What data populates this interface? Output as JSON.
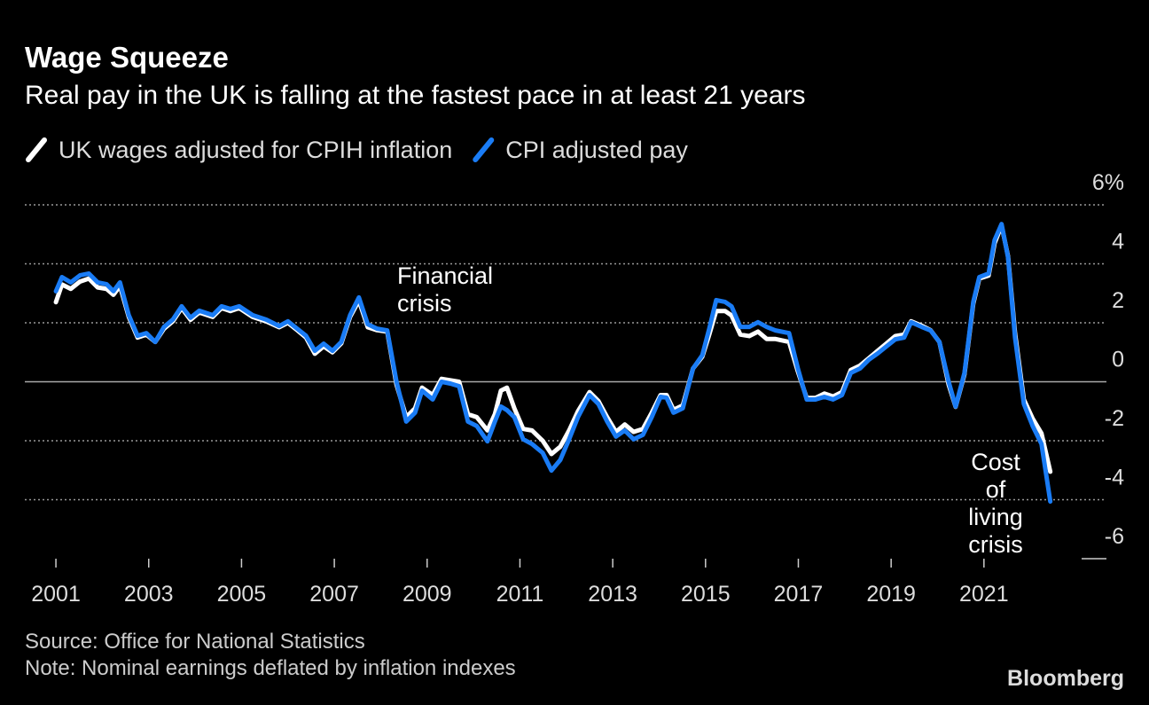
{
  "chart_data": {
    "type": "line",
    "title": "Wage Squeeze",
    "subtitle": "Real pay in the UK is falling at the fastest pace in at least 21 years",
    "source": "Source: Office for National Statistics",
    "note": "Note: Nominal earnings deflated by inflation indexes",
    "brand": "Bloomberg",
    "annotations": [
      {
        "lines": [
          "Financial",
          "crisis"
        ]
      },
      {
        "lines": [
          "Cost",
          "of",
          "living",
          "crisis"
        ]
      }
    ],
    "x": [
      2001.0,
      2001.13,
      2001.32,
      2001.52,
      2001.71,
      2001.9,
      2002.09,
      2002.24,
      2002.38,
      2002.57,
      2002.76,
      2002.95,
      2003.14,
      2003.33,
      2003.52,
      2003.71,
      2003.9,
      2004.09,
      2004.38,
      2004.57,
      2004.76,
      2004.95,
      2005.24,
      2005.53,
      2005.81,
      2006.0,
      2006.2,
      2006.39,
      2006.58,
      2006.77,
      2006.96,
      2007.15,
      2007.34,
      2007.53,
      2007.72,
      2007.92,
      2008.14,
      2008.34,
      2008.55,
      2008.74,
      2008.89,
      2009.12,
      2009.31,
      2009.5,
      2009.69,
      2009.88,
      2010.07,
      2010.3,
      2010.46,
      2010.59,
      2010.72,
      2010.88,
      2011.07,
      2011.26,
      2011.49,
      2011.68,
      2011.87,
      2012.06,
      2012.25,
      2012.5,
      2012.69,
      2012.88,
      2013.07,
      2013.26,
      2013.45,
      2013.65,
      2013.84,
      2014.03,
      2014.16,
      2014.31,
      2014.51,
      2014.73,
      2014.93,
      2015.08,
      2015.23,
      2015.42,
      2015.56,
      2015.75,
      2015.94,
      2016.13,
      2016.32,
      2016.51,
      2016.8,
      2016.99,
      2017.18,
      2017.37,
      2017.56,
      2017.75,
      2017.94,
      2018.13,
      2018.33,
      2018.52,
      2018.71,
      2018.9,
      2019.09,
      2019.28,
      2019.43,
      2019.66,
      2019.85,
      2020.04,
      2020.24,
      2020.39,
      2020.58,
      2020.77,
      2020.9,
      2021.1,
      2021.23,
      2021.38,
      2021.52,
      2021.67,
      2021.86,
      2022.05,
      2022.24,
      2022.43
    ],
    "series": [
      {
        "name": "UK wages adjusted for CPIH inflation",
        "color": "#ffffff",
        "values": [
          2.7,
          3.3,
          3.15,
          3.4,
          3.5,
          3.2,
          3.15,
          2.95,
          3.25,
          2.2,
          1.5,
          1.6,
          1.35,
          1.8,
          2.05,
          2.5,
          2.1,
          2.35,
          2.2,
          2.5,
          2.4,
          2.5,
          2.2,
          2.05,
          1.85,
          2.0,
          1.75,
          1.5,
          0.95,
          1.2,
          1.0,
          1.3,
          2.2,
          2.75,
          1.85,
          1.75,
          1.7,
          -0.1,
          -1.2,
          -0.9,
          -0.2,
          -0.45,
          0.1,
          0.05,
          0,
          -1.1,
          -1.2,
          -1.65,
          -1.1,
          -0.3,
          -0.2,
          -0.9,
          -1.6,
          -1.65,
          -2.0,
          -2.45,
          -2.2,
          -1.65,
          -1.0,
          -0.35,
          -0.65,
          -1.2,
          -1.7,
          -1.45,
          -1.7,
          -1.6,
          -1.05,
          -0.45,
          -0.45,
          -0.95,
          -0.8,
          0.45,
          0.85,
          1.6,
          2.4,
          2.4,
          2.25,
          1.6,
          1.55,
          1.7,
          1.45,
          1.45,
          1.35,
          0.35,
          -0.55,
          -0.55,
          -0.4,
          -0.5,
          -0.35,
          0.4,
          0.55,
          0.8,
          1.05,
          1.3,
          1.55,
          1.6,
          2.05,
          1.9,
          1.75,
          1.35,
          -0.1,
          -0.85,
          0.25,
          2.65,
          3.5,
          3.6,
          4.7,
          5.3,
          4.25,
          1.65,
          -0.6,
          -1.25,
          -1.75,
          -3.05
        ]
      },
      {
        "name": "CPI adjusted pay",
        "color": "#1a7cf5",
        "values": [
          3.07,
          3.55,
          3.37,
          3.61,
          3.67,
          3.37,
          3.31,
          3.07,
          3.37,
          2.26,
          1.56,
          1.65,
          1.35,
          1.86,
          2.11,
          2.56,
          2.17,
          2.41,
          2.26,
          2.56,
          2.47,
          2.56,
          2.26,
          2.11,
          1.89,
          2.05,
          1.8,
          1.56,
          1.05,
          1.29,
          1.05,
          1.35,
          2.26,
          2.86,
          1.95,
          1.8,
          1.74,
          0,
          -1.35,
          -1.05,
          -0.3,
          -0.6,
          0,
          -0.06,
          -0.15,
          -1.35,
          -1.5,
          -2.02,
          -1.35,
          -0.84,
          -0.96,
          -1.2,
          -1.95,
          -2.11,
          -2.41,
          -3.01,
          -2.65,
          -1.95,
          -1.2,
          -0.45,
          -0.75,
          -1.35,
          -1.86,
          -1.65,
          -1.95,
          -1.8,
          -1.2,
          -0.51,
          -0.54,
          -1.05,
          -0.9,
          0.45,
          0.9,
          1.8,
          2.77,
          2.71,
          2.56,
          1.86,
          1.86,
          2.02,
          1.86,
          1.74,
          1.65,
          0.45,
          -0.6,
          -0.6,
          -0.51,
          -0.6,
          -0.45,
          0.3,
          0.45,
          0.75,
          0.96,
          1.2,
          1.44,
          1.5,
          2.02,
          1.86,
          1.74,
          1.35,
          0,
          -0.84,
          0.3,
          2.71,
          3.55,
          3.67,
          4.81,
          5.35,
          4.21,
          1.5,
          -0.75,
          -1.5,
          -2.11,
          -4.06
        ]
      }
    ],
    "xlim": [
      2000.33,
      2023.64
    ],
    "xticks": [
      2001,
      2003,
      2005,
      2007,
      2009,
      2011,
      2013,
      2015,
      2017,
      2019,
      2021
    ],
    "ylim": [
      -6,
      6
    ],
    "yticks": [
      {
        "value": 6,
        "label": "6%"
      },
      4,
      2,
      0,
      -2,
      -4,
      -6
    ],
    "grid": true
  }
}
